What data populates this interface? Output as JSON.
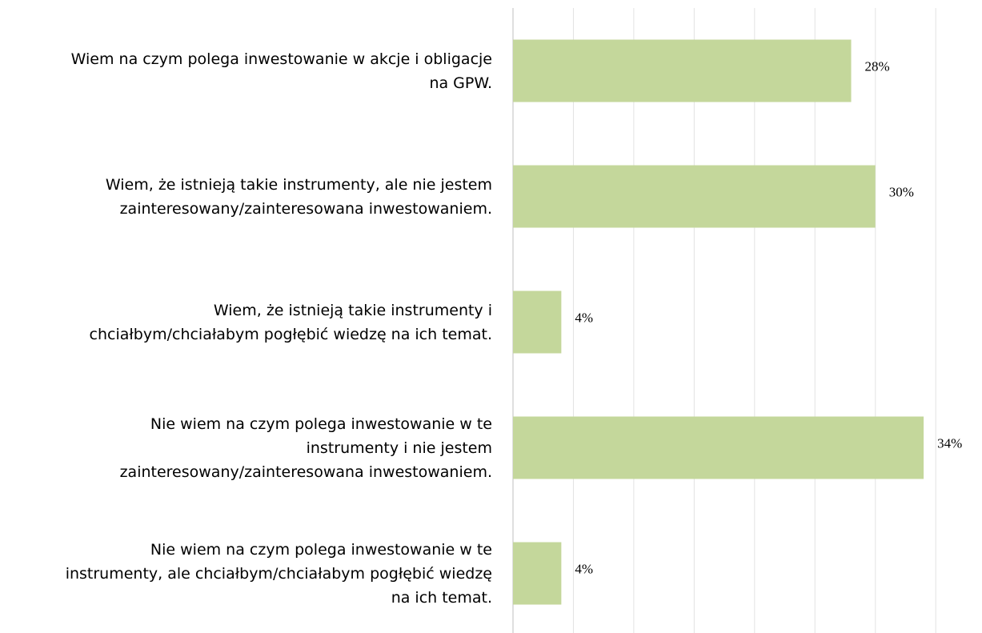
{
  "chart_data": {
    "type": "bar",
    "orientation": "horizontal",
    "categories": [
      "Wiem na czym polega inwestowanie w akcje i obligacje\nna GPW.",
      "Wiem, że istnieją takie instrumenty, ale nie jestem\nzainteresowany/zainteresowana inwestowaniem.",
      "Wiem, że istnieją takie instrumenty i\nchciałbym/chciałabym pogłębić wiedzę na ich temat.",
      "Nie wiem na czym polega inwestowanie w te\ninstrumenty i nie jestem\nzainteresowany/zainteresowana inwestowaniem.",
      "Nie wiem na czym polega inwestowanie w te\ninstrumenty, ale chciałbym/chciałabym pogłębić wiedzę\nna ich temat."
    ],
    "values": [
      28,
      30,
      4,
      34,
      4
    ],
    "value_labels": [
      "28%",
      "30%",
      "4%",
      "34%",
      "4%"
    ],
    "color": "#c4d79b",
    "xlim": [
      0,
      38.5
    ],
    "xticks": [
      0,
      5,
      10,
      15,
      20,
      25,
      30,
      35
    ],
    "grid": true
  }
}
